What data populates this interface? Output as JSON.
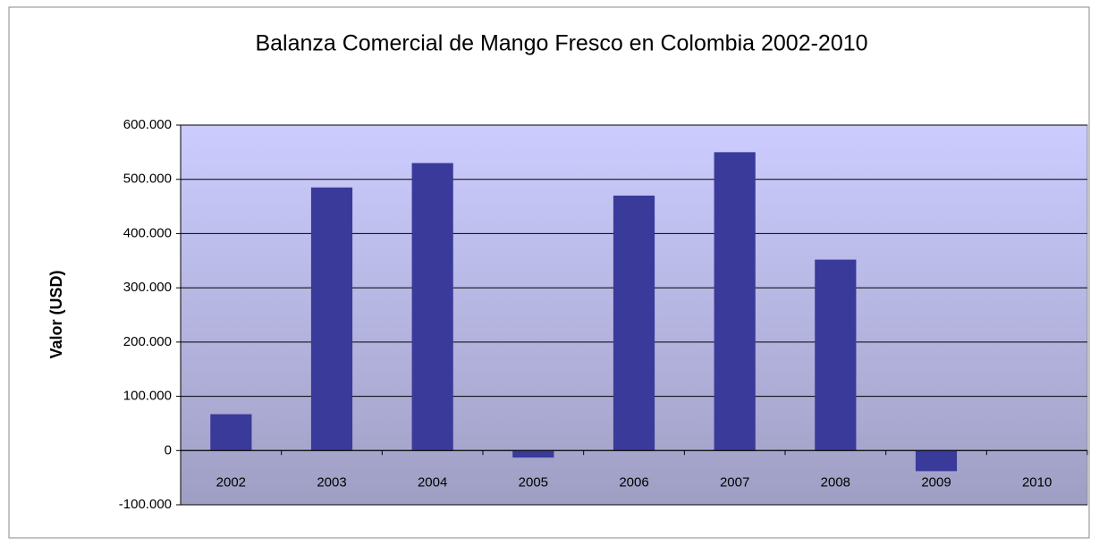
{
  "chart_data": {
    "type": "bar",
    "title": "Balanza Comercial de Mango Fresco en Colombia 2002-2010",
    "y_label": "Valor (USD)",
    "categories": [
      "2002",
      "2003",
      "2004",
      "2005",
      "2006",
      "2007",
      "2008",
      "2009",
      "2010"
    ],
    "values": [
      67000,
      485000,
      530000,
      -13000,
      470000,
      550000,
      352000,
      -38000,
      0
    ],
    "color": "#3a3a9a",
    "ylim": [
      -100000,
      600000
    ],
    "yticks": [
      {
        "value": -100000,
        "label": "-100.000"
      },
      0,
      {
        "value": 100000,
        "label": "100.000"
      },
      {
        "value": 200000,
        "label": "200.000"
      },
      {
        "value": 300000,
        "label": "300.000"
      },
      {
        "value": 400000,
        "label": "400.000"
      },
      {
        "value": 500000,
        "label": "500.000"
      },
      {
        "value": 600000,
        "label": "600.000"
      }
    ],
    "grid": true
  }
}
